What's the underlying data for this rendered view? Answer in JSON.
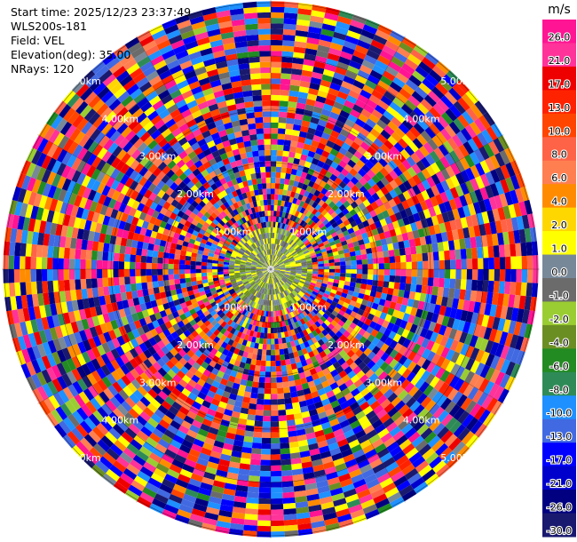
{
  "header": {
    "start_time": "Start time: 2025/12/23 23:37:49",
    "instrument": "WLS200s-181",
    "field": "Field: VEL",
    "elevation": "Elevation(deg): 35.00",
    "nrays": "NRays: 120"
  },
  "chart_data": {
    "type": "heatmap",
    "projection": "polar-ppi",
    "field": "VEL",
    "rays": 120,
    "range_rings_km": [
      "1.00km",
      "2.00km",
      "3.00km",
      "4.00km",
      "5.00km"
    ],
    "colorbar": {
      "unit": "m/s",
      "tick_labels": [
        "26.0",
        "21.0",
        "17.0",
        "13.0",
        "10.0",
        "8.0",
        "6.0",
        "4.0",
        "2.0",
        "1.0",
        "0.0",
        "-1.0",
        "-2.0",
        "-4.0",
        "-6.0",
        "-8.0",
        "-10.0",
        "-13.0",
        "-17.0",
        "-21.0",
        "-26.0",
        "-30.0"
      ],
      "colors": [
        "#ff1493",
        "#ff3399",
        "#ee0000",
        "#ff2200",
        "#ff4500",
        "#ff6347",
        "#ff7f50",
        "#ff8c00",
        "#ffd700",
        "#ffff00",
        "#778899",
        "#6b6b6b",
        "#9acd32",
        "#6b8e23",
        "#228b22",
        "#2e8b57",
        "#1e90ff",
        "#4169e1",
        "#0000ff",
        "#0000cd",
        "#000080",
        "#191970"
      ]
    }
  }
}
